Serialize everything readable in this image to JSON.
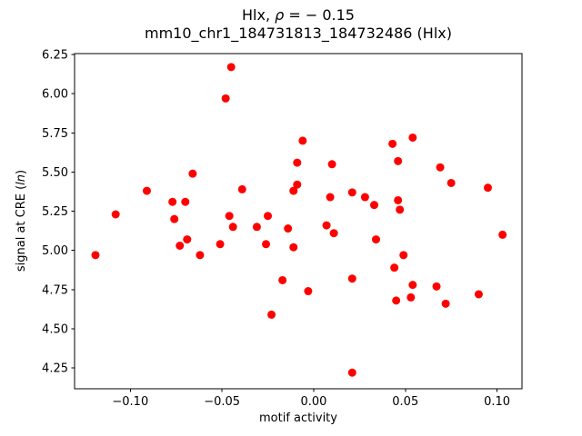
{
  "chart_data": {
    "type": "scatter",
    "title": "Hlx, ρ = − 0.15",
    "title_parts": {
      "prefix": "Hlx, ",
      "rho": "ρ",
      "rest": " = − 0.15"
    },
    "subtitle": "mm10_chr1_184731813_184732486 (Hlx)",
    "xlabel": "motif activity",
    "ylabel": "signal at CRE (ln)",
    "ylabel_parts": {
      "prefix": "signal at CRE (",
      "italic": "ln",
      "suffix": ")"
    },
    "xlim": [
      -0.1304,
      0.1136
    ],
    "ylim": [
      4.117,
      6.256
    ],
    "grid": false,
    "legend": null,
    "marker": {
      "shape": "circle",
      "color": "#ff0000",
      "radius": 4.5
    },
    "xticks": [
      {
        "value": -0.1,
        "label": "−0.10"
      },
      {
        "value": -0.05,
        "label": "−0.05"
      },
      {
        "value": 0.0,
        "label": "0.00"
      },
      {
        "value": 0.05,
        "label": "0.05"
      },
      {
        "value": 0.1,
        "label": "0.10"
      }
    ],
    "yticks": [
      {
        "value": 4.25,
        "label": "4.25"
      },
      {
        "value": 4.5,
        "label": "4.50"
      },
      {
        "value": 4.75,
        "label": "4.75"
      },
      {
        "value": 5.0,
        "label": "5.00"
      },
      {
        "value": 5.25,
        "label": "5.25"
      },
      {
        "value": 5.5,
        "label": "5.50"
      },
      {
        "value": 5.75,
        "label": "5.75"
      },
      {
        "value": 6.0,
        "label": "6.00"
      },
      {
        "value": 6.25,
        "label": "6.25"
      }
    ],
    "points": [
      [
        -0.119,
        4.97
      ],
      [
        -0.108,
        5.23
      ],
      [
        -0.091,
        5.38
      ],
      [
        -0.077,
        5.31
      ],
      [
        -0.076,
        5.2
      ],
      [
        -0.073,
        5.03
      ],
      [
        -0.07,
        5.31
      ],
      [
        -0.069,
        5.07
      ],
      [
        -0.066,
        5.49
      ],
      [
        -0.062,
        4.97
      ],
      [
        -0.051,
        5.04
      ],
      [
        -0.048,
        5.97
      ],
      [
        -0.046,
        5.22
      ],
      [
        -0.045,
        6.17
      ],
      [
        -0.044,
        5.15
      ],
      [
        -0.039,
        5.39
      ],
      [
        -0.031,
        5.15
      ],
      [
        -0.026,
        5.04
      ],
      [
        -0.025,
        5.22
      ],
      [
        -0.023,
        4.59
      ],
      [
        -0.017,
        4.81
      ],
      [
        -0.014,
        5.14
      ],
      [
        -0.011,
        5.38
      ],
      [
        -0.011,
        5.02
      ],
      [
        -0.009,
        5.42
      ],
      [
        -0.009,
        5.56
      ],
      [
        -0.006,
        5.7
      ],
      [
        -0.003,
        4.74
      ],
      [
        0.007,
        5.16
      ],
      [
        0.009,
        5.34
      ],
      [
        0.01,
        5.55
      ],
      [
        0.011,
        5.11
      ],
      [
        0.021,
        5.37
      ],
      [
        0.021,
        4.82
      ],
      [
        0.021,
        4.22
      ],
      [
        0.028,
        5.34
      ],
      [
        0.033,
        5.29
      ],
      [
        0.034,
        5.07
      ],
      [
        0.043,
        5.68
      ],
      [
        0.044,
        4.89
      ],
      [
        0.045,
        4.68
      ],
      [
        0.046,
        5.57
      ],
      [
        0.046,
        5.32
      ],
      [
        0.047,
        5.26
      ],
      [
        0.049,
        4.97
      ],
      [
        0.053,
        4.7
      ],
      [
        0.054,
        5.72
      ],
      [
        0.054,
        4.78
      ],
      [
        0.067,
        4.77
      ],
      [
        0.069,
        5.53
      ],
      [
        0.072,
        4.66
      ],
      [
        0.075,
        5.43
      ],
      [
        0.09,
        4.72
      ],
      [
        0.095,
        5.4
      ],
      [
        0.103,
        5.1
      ]
    ]
  }
}
